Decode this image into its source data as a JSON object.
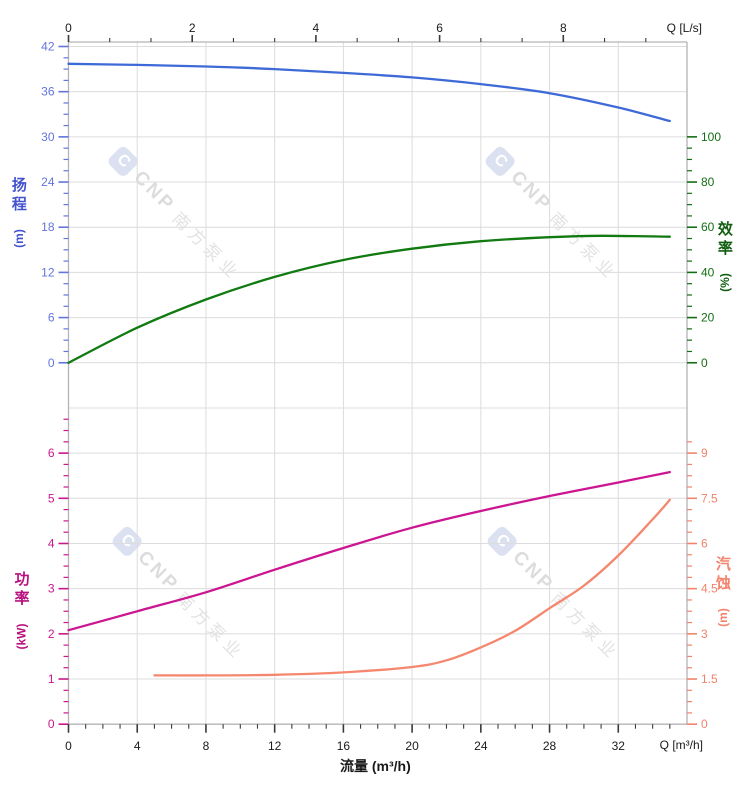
{
  "watermark": {
    "logo_glyph": "C",
    "brand": "CNP",
    "brand_cn": "南方泵业"
  },
  "labels": {
    "top_flow_unit": "Q [L/s]",
    "bottom_flow_unit": "Q [m³/h]",
    "flow_axis_title": "流量 (m³/h)"
  },
  "colors": {
    "grid": "#dcdcdc",
    "axis_line": "#b4b4b4",
    "x_tick": "#3a3a3a",
    "x_text": "#1a1a1a"
  },
  "chart_data": {
    "type": "line",
    "title": "",
    "xlabel": "流量 (m³/h)",
    "grid": true,
    "x_axis_bottom": {
      "unit_label": "Q [m³/h]",
      "majors": [
        0,
        4,
        8,
        12,
        16,
        20,
        24,
        28,
        32
      ],
      "minor_step": 1,
      "minor_max": 35,
      "range": [
        0,
        36
      ]
    },
    "x_axis_top": {
      "unit_label": "Q [L/s]",
      "majors": [
        0,
        2,
        4,
        6,
        8
      ],
      "minor_step": 0.6667,
      "minor_max": 9.35,
      "range": [
        0,
        10
      ]
    },
    "y_axes": {
      "left_top": {
        "title": "扬程",
        "title_chars": [
          "扬",
          "程"
        ],
        "unit": "(m)",
        "majors": [
          0,
          6,
          12,
          18,
          24,
          30,
          36,
          42
        ],
        "minor_step": 1.5,
        "minor_max": 42,
        "range": [
          0,
          42
        ],
        "color": "#6374dc",
        "title_color": "#4353cf"
      },
      "right_top": {
        "title": "效率",
        "title_chars": [
          "效",
          "率"
        ],
        "unit": "(%)",
        "majors": [
          0,
          20,
          40,
          60,
          80,
          100
        ],
        "minor_step": 5,
        "minor_max": 100,
        "range": [
          0,
          100
        ],
        "color": "#146e14",
        "title_color": "#115e11"
      },
      "left_bottom": {
        "title": "功率",
        "title_chars": [
          "功",
          "率"
        ],
        "unit": "(kW)",
        "majors": [
          0,
          1,
          2,
          3,
          4,
          5,
          6
        ],
        "minor_step": 0.25,
        "minor_max": 7,
        "range": [
          0,
          6
        ],
        "color": "#c9188c",
        "title_color": "#b8107e"
      },
      "right_bottom": {
        "title": "汽蚀",
        "title_chars": [
          "汽",
          "蚀"
        ],
        "unit": "(m)",
        "majors": [
          0,
          1.5,
          3,
          4.5,
          6,
          7.5,
          9
        ],
        "minor_step": 0.375,
        "minor_max": 9.4,
        "range": [
          0,
          9
        ],
        "color": "#f2836c",
        "title_color": "#f2836c"
      }
    },
    "series": [
      {
        "name": "扬程",
        "unit": "m",
        "axis": "left_top",
        "color": "#3e6ad8",
        "x": [
          0,
          4,
          8,
          12,
          16,
          20,
          24,
          28,
          32,
          35
        ],
        "y": [
          39.7,
          39.55,
          39.35,
          39.0,
          38.5,
          37.9,
          37.0,
          35.8,
          33.9,
          32.1
        ]
      },
      {
        "name": "效率",
        "unit": "%",
        "axis": "right_top",
        "color": "#117a11",
        "x": [
          0,
          4,
          8,
          12,
          16,
          20,
          24,
          28,
          31,
          35
        ],
        "y": [
          0,
          15.5,
          28,
          38,
          45.5,
          50.5,
          53.8,
          55.6,
          56.2,
          55.8
        ]
      },
      {
        "name": "功率",
        "unit": "kW",
        "axis": "left_bottom",
        "color": "#cc1590",
        "x": [
          0,
          4,
          8,
          12,
          16,
          20,
          24,
          28,
          32,
          35
        ],
        "y": [
          2.08,
          2.5,
          2.92,
          3.42,
          3.9,
          4.35,
          4.72,
          5.05,
          5.35,
          5.58
        ]
      },
      {
        "name": "汽蚀",
        "unit": "m",
        "axis": "right_bottom",
        "color": "#f4876e",
        "x": [
          5,
          8,
          12,
          16,
          20,
          22,
          24,
          26,
          28,
          30,
          32,
          34,
          35
        ],
        "y": [
          1.62,
          1.62,
          1.64,
          1.72,
          1.9,
          2.12,
          2.55,
          3.1,
          3.85,
          4.6,
          5.6,
          6.8,
          7.45
        ]
      }
    ]
  }
}
